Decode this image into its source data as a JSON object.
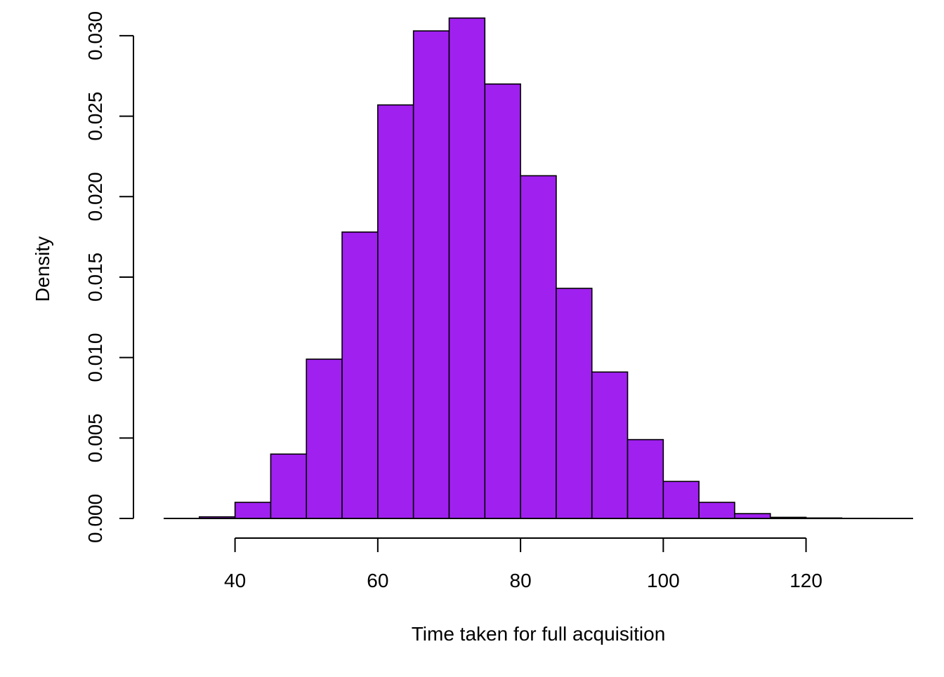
{
  "chart_data": {
    "type": "bar",
    "subtype": "histogram",
    "title": "",
    "xlabel": "Time taken for full acquisition",
    "ylabel": "Density",
    "bin_edges": [
      35,
      40,
      45,
      50,
      55,
      60,
      65,
      70,
      75,
      80,
      85,
      90,
      95,
      100,
      105,
      110,
      115,
      120,
      125,
      130
    ],
    "values": [
      0.0001,
      0.001,
      0.004,
      0.0099,
      0.0178,
      0.0257,
      0.0303,
      0.0311,
      0.027,
      0.0213,
      0.0143,
      0.0091,
      0.0049,
      0.0023,
      0.001,
      0.0003,
      7e-05,
      3e-05,
      1e-05
    ],
    "xlim": [
      30,
      135
    ],
    "ylim": [
      0,
      0.031
    ],
    "xticks": [
      40,
      60,
      80,
      100,
      120
    ],
    "xtick_labels": [
      "40",
      "60",
      "80",
      "100",
      "120"
    ],
    "yticks": [
      0.0,
      0.005,
      0.01,
      0.015,
      0.02,
      0.025,
      0.03
    ],
    "ytick_labels": [
      "0.000",
      "0.005",
      "0.010",
      "0.015",
      "0.020",
      "0.025",
      "0.030"
    ],
    "bar_color": "#A020F0",
    "grid": false,
    "legend": "none"
  }
}
